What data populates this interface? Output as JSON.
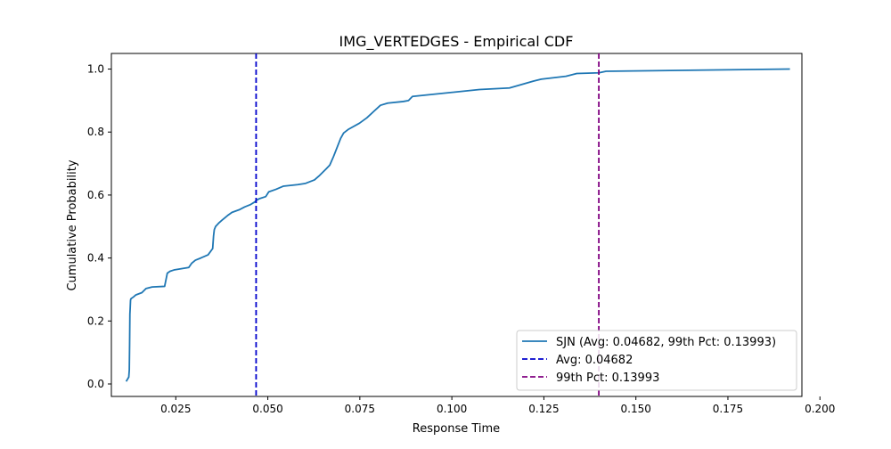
{
  "chart_data": {
    "type": "line",
    "title": "IMG_VERTEDGES - Empirical CDF",
    "xlabel": "Response Time",
    "ylabel": "Cumulative Probability",
    "xlim": [
      0.0075,
      0.1951
    ],
    "ylim": [
      -0.0396,
      1.0496
    ],
    "xticks": [
      0.025,
      0.05,
      0.075,
      0.1,
      0.125,
      0.15,
      0.175,
      0.2
    ],
    "xtick_labels": [
      "0.025",
      "0.050",
      "0.075",
      "0.100",
      "0.125",
      "0.150",
      "0.175",
      "0.200"
    ],
    "yticks": [
      0.0,
      0.2,
      0.4,
      0.6,
      0.8,
      1.0
    ],
    "ytick_labels": [
      "0.0",
      "0.2",
      "0.4",
      "0.6",
      "0.8",
      "1.0"
    ],
    "grid": false,
    "legend_position": "lower-right",
    "series": [
      {
        "name": "SJN (Avg: 0.04682, 99th Pct: 0.13993)",
        "kind": "line",
        "color": "#1f77b4",
        "x": [
          0.01152,
          0.01223,
          0.01237,
          0.01245,
          0.01253,
          0.01262,
          0.0127,
          0.01278,
          0.01297,
          0.01347,
          0.01418,
          0.01579,
          0.01691,
          0.01858,
          0.02197,
          0.02232,
          0.0227,
          0.02344,
          0.0245,
          0.02852,
          0.0293,
          0.03033,
          0.0318,
          0.03377,
          0.03502,
          0.03526,
          0.03546,
          0.03581,
          0.03676,
          0.03754,
          0.03908,
          0.04027,
          0.04219,
          0.0437,
          0.04535,
          0.04646,
          0.04685,
          0.04763,
          0.04944,
          0.05025,
          0.05219,
          0.05418,
          0.05812,
          0.06026,
          0.06268,
          0.06386,
          0.06584,
          0.06683,
          0.06788,
          0.06979,
          0.0706,
          0.07181,
          0.07489,
          0.07689,
          0.07883,
          0.0806,
          0.08257,
          0.0868,
          0.08821,
          0.0893,
          0.1075,
          0.11565,
          0.11862,
          0.12221,
          0.12429,
          0.13098,
          0.13395,
          0.13993,
          0.1419,
          0.19185
        ],
        "y": [
          0.008,
          0.022,
          0.045,
          0.123,
          0.222,
          0.243,
          0.265,
          0.27,
          0.272,
          0.276,
          0.283,
          0.29,
          0.303,
          0.308,
          0.31,
          0.33,
          0.352,
          0.358,
          0.362,
          0.37,
          0.383,
          0.393,
          0.4,
          0.41,
          0.43,
          0.47,
          0.49,
          0.5,
          0.512,
          0.52,
          0.535,
          0.545,
          0.553,
          0.562,
          0.57,
          0.578,
          0.583,
          0.588,
          0.595,
          0.61,
          0.618,
          0.628,
          0.633,
          0.637,
          0.648,
          0.66,
          0.683,
          0.695,
          0.723,
          0.78,
          0.797,
          0.808,
          0.828,
          0.845,
          0.866,
          0.885,
          0.892,
          0.897,
          0.9,
          0.913,
          0.935,
          0.94,
          0.95,
          0.962,
          0.968,
          0.977,
          0.986,
          0.988,
          0.993,
          1.0
        ]
      },
      {
        "name": "Avg: 0.04682",
        "kind": "vline",
        "value": 0.04682,
        "color": "#0000cc",
        "dash": true
      },
      {
        "name": "99th Pct: 0.13993",
        "kind": "vline",
        "value": 0.13993,
        "color": "#800080",
        "dash": true
      }
    ]
  }
}
